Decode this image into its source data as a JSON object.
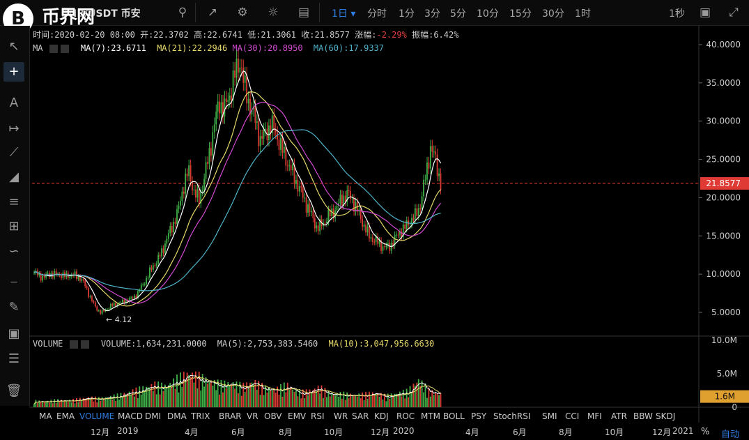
{
  "toolbar": {
    "symbol": "BNB/USDT 币安",
    "intervals": [
      "1日",
      "分时",
      "1分",
      "3分",
      "5分",
      "10分",
      "15分",
      "30分",
      "1时"
    ],
    "active_interval": "1日",
    "refresh": "1秒"
  },
  "watermark": {
    "logo_letter": "B",
    "text": "币界网"
  },
  "info": {
    "time_label": "时间:",
    "time": "2020-02-20 08:00",
    "open_label": "开:",
    "open": "22.3702",
    "high_label": "高:",
    "high": "22.6741",
    "low_label": "低:",
    "low": "21.3061",
    "close_label": "收:",
    "close": "21.8577",
    "chg_label": "涨幅:",
    "chg": "-2.29%",
    "amp_label": "振幅:",
    "amp": "6.42%"
  },
  "ma": {
    "label": "MA",
    "ma7": "MA(7):23.6711",
    "ma21": "MA(21):22.2946",
    "ma30": "MA(30):20.8950",
    "ma60": "MA(60):17.9337"
  },
  "volume": {
    "label": "VOLUME",
    "value": "VOLUME:1,634,231.0000",
    "ma5": "MA(5):2,753,383.5460",
    "ma10": "MA(10):3,047,956.6630"
  },
  "colors": {
    "up": "#3fae47",
    "down": "#d63a32",
    "ma7": "#ffffff",
    "ma21": "#e6d96a",
    "ma30": "#d24bd2",
    "ma60": "#4fb3c8",
    "accent": "#2e7de1",
    "last_price_bg": "#e03a34",
    "vol_tag_bg": "#e0a030"
  },
  "chart_data": {
    "type": "candlestick",
    "price_axis": [
      "40.0000",
      "35.0000",
      "30.0000",
      "25.0000",
      "20.0000",
      "15.0000",
      "10.0000",
      "5.0000"
    ],
    "last_price": "21.8577",
    "low_marker": "← 4.12",
    "volume_axis": [
      "10.0M",
      "5.0M",
      "0"
    ],
    "volume_last": "1.6M",
    "x_ticks": [
      "12月",
      "2019",
      "4月",
      "6月",
      "8月",
      "10月",
      "12月",
      "2020",
      "4月",
      "6月",
      "8月",
      "10月",
      "12月",
      "2021"
    ],
    "close_series": [
      10.2,
      9.8,
      9.6,
      10.1,
      9.9,
      10.0,
      9.7,
      9.9,
      9.8,
      9.5,
      8.4,
      6.8,
      5.6,
      4.9,
      5.4,
      5.9,
      6.1,
      6.3,
      6.6,
      6.8,
      7.4,
      8.5,
      9.6,
      11.0,
      11.8,
      13.2,
      15.0,
      16.5,
      18.3,
      21.5,
      23.5,
      21.0,
      19.5,
      22.5,
      25.5,
      29.5,
      32.5,
      31.5,
      33.5,
      36.0,
      38.0,
      34.0,
      32.0,
      30.0,
      27.5,
      28.5,
      29.5,
      28.5,
      26.5,
      25.0,
      23.5,
      22.0,
      20.5,
      19.0,
      17.5,
      16.0,
      16.5,
      17.5,
      18.0,
      19.0,
      20.0,
      20.5,
      19.5,
      18.0,
      16.5,
      15.0,
      14.5,
      14.0,
      13.5,
      13.6,
      14.5,
      15.5,
      16.0,
      17.0,
      17.5,
      19.0,
      22.5,
      26.5,
      25.0,
      21.86
    ],
    "volume_ma_m": [
      0.8,
      0.7,
      0.9,
      0.8,
      1.0,
      1.2,
      1.1,
      1.3,
      1.6,
      2.0,
      2.4,
      2.8,
      2.6,
      3.5,
      4.2,
      3.8,
      3.2,
      2.9,
      3.0,
      2.6,
      3.2,
      2.4,
      2.2,
      2.8,
      1.8,
      2.0,
      2.5,
      1.6,
      1.7,
      1.5,
      1.6,
      1.8,
      1.4,
      1.7,
      2.0,
      3.4,
      2.0,
      1.6
    ]
  },
  "indicators": [
    "MA",
    "EMA",
    "VOLUME",
    "MACD",
    "DMI",
    "DMA",
    "TRIX",
    "BRAR",
    "VR",
    "OBV",
    "EMV",
    "RSI",
    "WR",
    "SAR",
    "KDJ",
    "ROC",
    "MTM",
    "BOLL",
    "PSY",
    "StochRSI",
    "SMI",
    "CCI",
    "MFI",
    "ATR",
    "BBW",
    "SKDJ"
  ],
  "active_indicator": "VOLUME",
  "bottom_right": {
    "pct": "%",
    "auto": "自动"
  }
}
